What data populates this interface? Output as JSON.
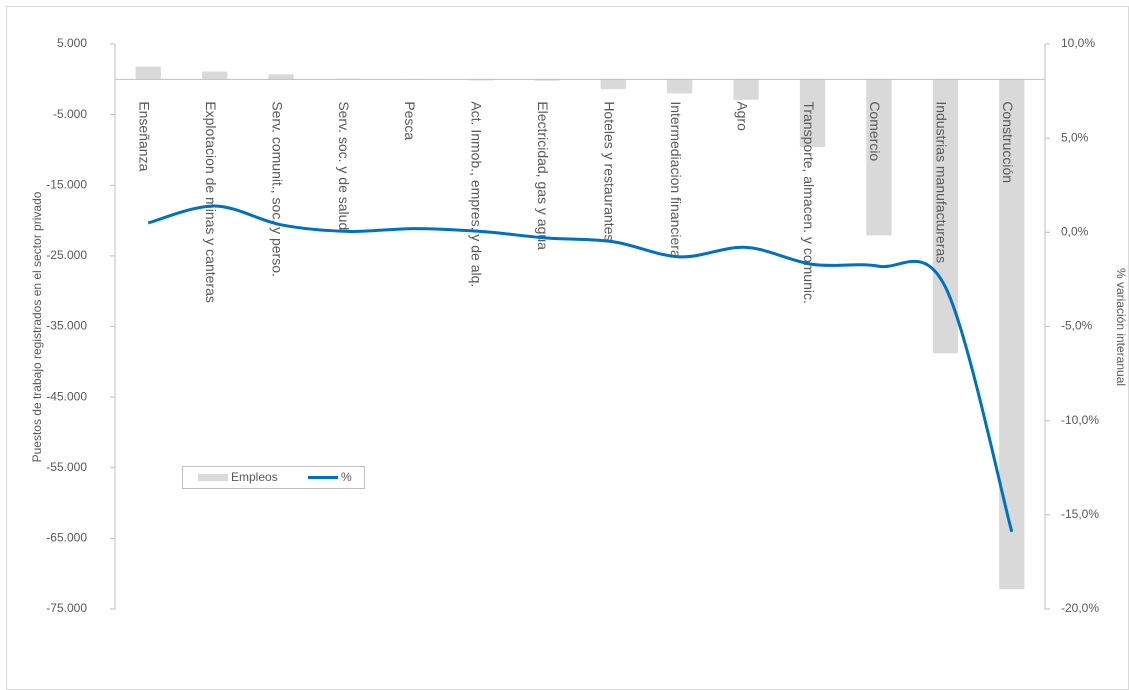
{
  "chart_data": {
    "type": "bar_line",
    "categories": [
      "Enseñanza",
      "Explotacion de minas y canteras",
      "Serv. comunit., soc. y perso.",
      "Serv. soc. y de salud",
      "Pesca",
      "Act. Inmob., empres. y de alq.",
      "Electricidad, gas y agua",
      "Hoteles y restaurantes",
      "Intermediacion financiera",
      "Agro",
      "Transporte, almacen. y comunic.",
      "Comercio",
      "Industrias manufactureras",
      "Construcción"
    ],
    "series": [
      {
        "name": "Empleos",
        "color": "#d9d9d9",
        "type": "bar",
        "values": [
          1800,
          1100,
          700,
          100,
          -50,
          -150,
          -200,
          -1400,
          -2000,
          -2900,
          -9600,
          -22100,
          -38800,
          -72200
        ]
      },
      {
        "name": "%",
        "color": "#0070c0",
        "type": "line",
        "axis": "y2",
        "values": [
          0.5,
          1.4,
          0.4,
          0.05,
          0.2,
          0.05,
          -0.3,
          -0.5,
          -1.3,
          -0.8,
          -1.7,
          -1.8,
          -2.9,
          -15.9
        ]
      }
    ],
    "ylabel": "Puestos de trabajo registrados en el sector privado",
    "y2label": "% variación interanual",
    "ylim": [
      -75000,
      5000
    ],
    "yticks": [
      {
        "value": 5000,
        "label": "5.000"
      },
      {
        "value": -5000,
        "label": "-5.000"
      },
      {
        "value": -15000,
        "label": "-15.000"
      },
      {
        "value": -25000,
        "label": "-25.000"
      },
      {
        "value": -35000,
        "label": "-35.000"
      },
      {
        "value": -45000,
        "label": "-45.000"
      },
      {
        "value": -55000,
        "label": "-55.000"
      },
      {
        "value": -65000,
        "label": "-65.000"
      },
      {
        "value": -75000,
        "label": "-75.000"
      }
    ],
    "y2lim": [
      -20,
      10
    ],
    "y2ticks": [
      {
        "value": 10,
        "label": "10,0%"
      },
      {
        "value": 5,
        "label": "5,0%"
      },
      {
        "value": 0,
        "label": "0,0%"
      },
      {
        "value": -5,
        "label": "-5,0%"
      },
      {
        "value": -10,
        "label": "-10,0%"
      },
      {
        "value": -15,
        "label": "-15,0%"
      },
      {
        "value": -20,
        "label": "-20,0%"
      }
    ],
    "legend": "bottom-left"
  }
}
